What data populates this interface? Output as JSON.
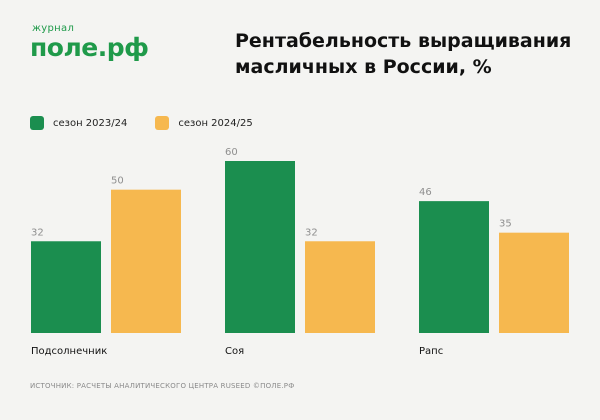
{
  "logo": {
    "top": "журнал",
    "main": "поле.рф"
  },
  "title": "Рентабельность выращивания масличных в России, %",
  "colors": {
    "series1": "#1b8e4f",
    "series2": "#f6b84f",
    "brand": "#1f9a4a",
    "value_label": "#8f8f8f"
  },
  "chart_data": {
    "type": "bar",
    "categories": [
      "Подсолнечник",
      "Соя",
      "Рапс"
    ],
    "series": [
      {
        "name": "сезон 2023/24",
        "values": [
          32,
          60,
          46
        ]
      },
      {
        "name": "сезон 2024/25",
        "values": [
          50,
          32,
          35
        ]
      }
    ],
    "ylim": [
      0,
      60
    ],
    "grid": false,
    "legend_position": "top-left"
  },
  "source": "Источник: расчеты аналитического центра RUSEED ©поле.рф"
}
